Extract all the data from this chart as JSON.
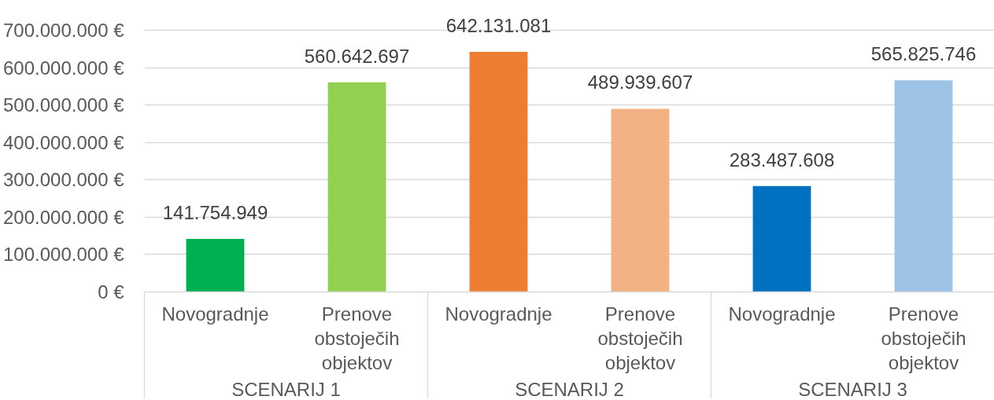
{
  "chart_data": {
    "type": "bar",
    "categories": [
      "Novogradnje",
      "Prenove obstoječih objektov",
      "Novogradnje",
      "Prenove obstoječih objektov",
      "Novogradnje",
      "Prenove obstoječih objektov"
    ],
    "values": [
      141754949,
      560642697,
      642131081,
      489939607,
      283487608,
      565825746
    ],
    "colors": [
      "#00b050",
      "#92d050",
      "#ed7d31",
      "#f4b183",
      "#0070c0",
      "#9dc3e6"
    ],
    "value_labels": [
      "141.754.949",
      "560.642.697",
      "642.131.081",
      "489.939.607",
      "283.487.608",
      "565.825.746"
    ],
    "ylim": [
      0,
      700000000
    ],
    "yticks": [
      {
        "value": 0,
        "label": "0 €"
      },
      {
        "value": 100000000,
        "label": "100.000.000 €"
      },
      {
        "value": 200000000,
        "label": "200.000.000 €"
      },
      {
        "value": 300000000,
        "label": "300.000.000 €"
      },
      {
        "value": 400000000,
        "label": "400.000.000 €"
      },
      {
        "value": 500000000,
        "label": "500.000.000 €"
      },
      {
        "value": 600000000,
        "label": "600.000.000 €"
      },
      {
        "value": 700000000,
        "label": "700.000.000 €"
      }
    ],
    "grid": "y",
    "annotations": [
      "SCENARIJ 1",
      "SCENARIJ 2",
      "SCENARIJ 3"
    ]
  }
}
